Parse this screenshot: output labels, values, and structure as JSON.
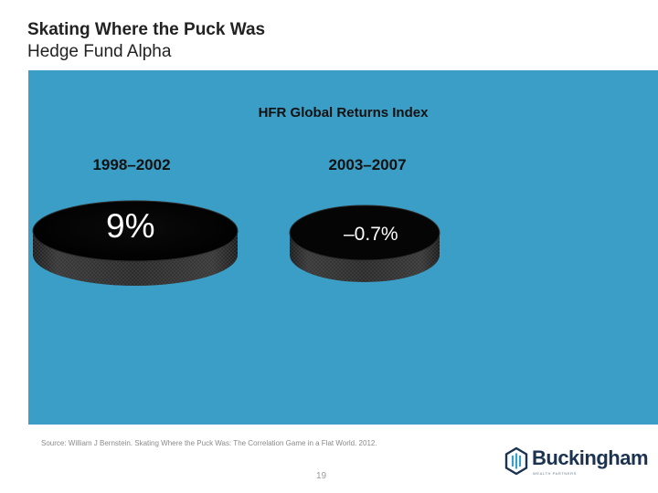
{
  "slide": {
    "title": "Skating Where the Puck Was",
    "subtitle": "Hedge Fund Alpha"
  },
  "panel": {
    "background_color": "#3b9ec6",
    "heading": "HFR Global Returns Index",
    "periods": [
      {
        "label": "1998–2002",
        "value": "9%"
      },
      {
        "label": "2003–2007",
        "value": "–0.7%"
      }
    ]
  },
  "footer": {
    "source": "Source: William J Bernstein. Skating Where the Puck Was: The Correlation Game in a Flat World. 2012.",
    "page_number": "19",
    "logo": {
      "name": "Buckingham",
      "tagline": "WEALTH PARTNERS",
      "brand_color": "#1b3250",
      "accent_color": "#3b9ec6"
    }
  }
}
